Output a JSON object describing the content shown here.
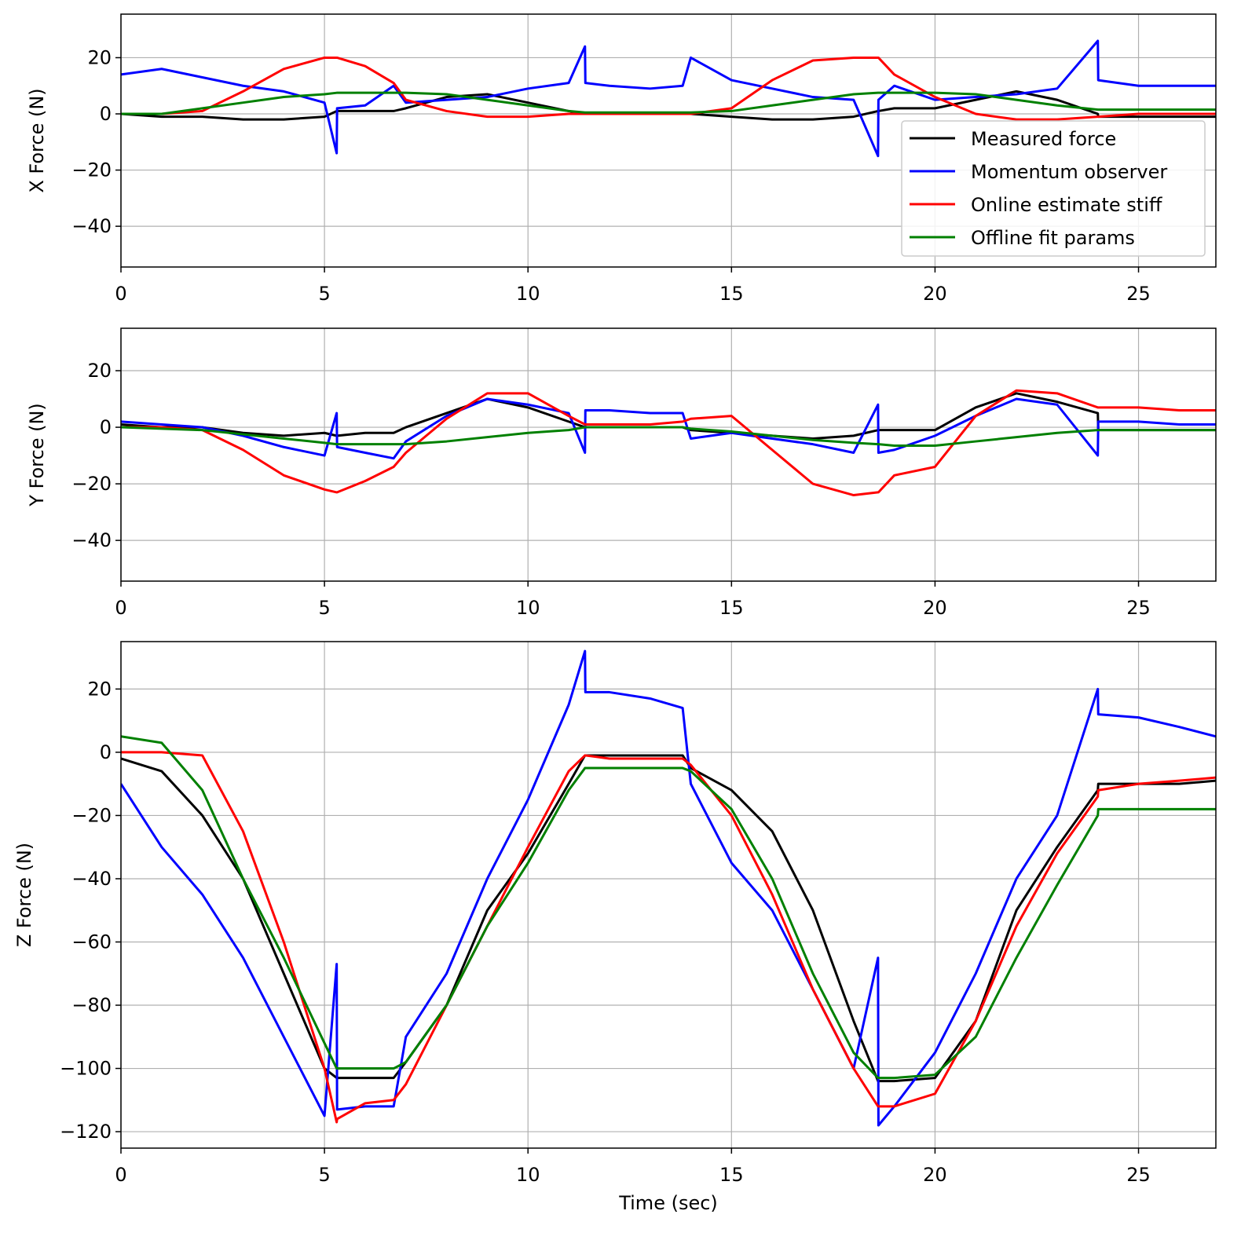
{
  "chart_data": [
    {
      "type": "line",
      "ylabel": "X Force (N)",
      "x": [
        0,
        1,
        2,
        3,
        4,
        5,
        5.3,
        5.31,
        6,
        6.7,
        7,
        8,
        9,
        10,
        11,
        11.4,
        11.41,
        12,
        13,
        13.8,
        14,
        15,
        16,
        17,
        18,
        18.6,
        18.61,
        19,
        20,
        21,
        22,
        23,
        24,
        24.01,
        25,
        26,
        26.9
      ],
      "xlim": [
        0,
        26.9
      ],
      "ylim": [
        -54.5,
        35.5
      ],
      "xticks": [
        0,
        5,
        10,
        15,
        20,
        25
      ],
      "yticks": [
        {
          "value": -40,
          "label": "−40"
        },
        {
          "value": -20,
          "label": "−20"
        },
        0,
        20
      ],
      "grid": true,
      "legend": "lower right",
      "series": [
        {
          "name": "Measured force",
          "color": "#000000",
          "values": [
            0,
            -1,
            -1,
            -2,
            -2,
            -1,
            1,
            1,
            1,
            1,
            2,
            6,
            7,
            4,
            1,
            0,
            0,
            0,
            0,
            0,
            0,
            -1,
            -2,
            -2,
            -1,
            1,
            1,
            2,
            2,
            5,
            8,
            5,
            0,
            -1,
            -1,
            -1,
            -1
          ]
        },
        {
          "name": "Momentum observer",
          "color": "#0000ff",
          "values": [
            14,
            16,
            13,
            10,
            8,
            4,
            -14,
            2,
            3,
            10,
            4,
            5,
            6,
            9,
            11,
            24,
            11,
            10,
            9,
            10,
            20,
            12,
            9,
            6,
            5,
            -15,
            5,
            10,
            5,
            6,
            7,
            9,
            26,
            12,
            10,
            10,
            10
          ]
        },
        {
          "name": "Online estimate stiff",
          "color": "#ff0000",
          "values": [
            0,
            0,
            1,
            8,
            16,
            20,
            20,
            20,
            17,
            11,
            5,
            1,
            -1,
            -1,
            0,
            0,
            0,
            0,
            0,
            0,
            0,
            2,
            12,
            19,
            20,
            20,
            20,
            14,
            6,
            0,
            -2,
            -2,
            -1,
            -1,
            0,
            0,
            0
          ]
        },
        {
          "name": "Offline fit params",
          "color": "#008000",
          "values": [
            0,
            0,
            2,
            4,
            6,
            7,
            7.5,
            7.5,
            7.5,
            7.5,
            7.5,
            7,
            5,
            3,
            1,
            0.5,
            0.5,
            0.5,
            0.5,
            0.5,
            0.5,
            1,
            3,
            5,
            7,
            7.5,
            7.5,
            7.5,
            7.5,
            7,
            5,
            3,
            1.5,
            1.5,
            1.5,
            1.5,
            1.5
          ]
        }
      ]
    },
    {
      "type": "line",
      "ylabel": "Y Force (N)",
      "x": [
        0,
        1,
        2,
        3,
        4,
        5,
        5.3,
        5.31,
        6,
        6.7,
        7,
        8,
        9,
        10,
        11,
        11.4,
        11.41,
        12,
        13,
        13.8,
        14,
        15,
        16,
        17,
        18,
        18.6,
        18.61,
        19,
        20,
        21,
        22,
        23,
        24,
        24.01,
        25,
        26,
        26.9
      ],
      "xlim": [
        0,
        26.9
      ],
      "ylim": [
        -54.4,
        35
      ],
      "xticks": [
        0,
        5,
        10,
        15,
        20,
        25
      ],
      "yticks": [
        {
          "value": -40,
          "label": "−40"
        },
        {
          "value": -20,
          "label": "−20"
        },
        0,
        20
      ],
      "grid": true,
      "series": [
        {
          "color": "#000000",
          "values": [
            1,
            0,
            0,
            -2,
            -3,
            -2,
            -3,
            -3,
            -2,
            -2,
            0,
            5,
            10,
            7,
            2,
            0,
            0,
            0,
            0,
            0,
            -1,
            -2,
            -3,
            -4,
            -3,
            -1,
            -1,
            -1,
            -1,
            7,
            12,
            9,
            5,
            -1,
            -1,
            -1,
            -1
          ]
        },
        {
          "color": "#0000ff",
          "values": [
            2,
            1,
            0,
            -3,
            -7,
            -10,
            5,
            -7,
            -9,
            -11,
            -5,
            4,
            10,
            8,
            5,
            -9,
            6,
            6,
            5,
            5,
            -4,
            -2,
            -4,
            -6,
            -9,
            8,
            -9,
            -8,
            -3,
            4,
            10,
            8,
            -10,
            2,
            2,
            1,
            1
          ]
        },
        {
          "color": "#ff0000",
          "values": [
            0,
            0,
            -1,
            -8,
            -17,
            -22,
            -23,
            -23,
            -19,
            -14,
            -9,
            3,
            12,
            12,
            4,
            1,
            1,
            1,
            1,
            2,
            3,
            4,
            -8,
            -20,
            -24,
            -23,
            -23,
            -17,
            -14,
            4,
            13,
            12,
            7,
            7,
            7,
            6,
            6
          ]
        },
        {
          "color": "#008000",
          "values": [
            0,
            -0.5,
            -1,
            -2.5,
            -4,
            -5.5,
            -6,
            -6,
            -6,
            -6,
            -6,
            -5,
            -3.5,
            -2,
            -1,
            0,
            0,
            0,
            0,
            0,
            -0.5,
            -1.5,
            -3,
            -4.5,
            -5.5,
            -6,
            -6,
            -6.5,
            -6.5,
            -5,
            -3.5,
            -2,
            -1,
            -1,
            -1,
            -1,
            -1
          ]
        }
      ]
    },
    {
      "type": "line",
      "ylabel": "Z Force (N)",
      "xlabel": "Time (sec)",
      "x": [
        0,
        1,
        2,
        3,
        4,
        5,
        5.3,
        5.31,
        6,
        6.7,
        7,
        8,
        9,
        10,
        11,
        11.4,
        11.41,
        12,
        13,
        13.8,
        14,
        15,
        16,
        17,
        18,
        18.6,
        18.61,
        19,
        20,
        21,
        22,
        23,
        24,
        24.01,
        25,
        26,
        26.9
      ],
      "xlim": [
        0,
        26.9
      ],
      "ylim": [
        -125.2,
        35
      ],
      "xticks": [
        0,
        5,
        10,
        15,
        20,
        25
      ],
      "yticks": [
        {
          "value": -120,
          "label": "−120"
        },
        {
          "value": -100,
          "label": "−100"
        },
        {
          "value": -80,
          "label": "−80"
        },
        {
          "value": -60,
          "label": "−60"
        },
        {
          "value": -40,
          "label": "−40"
        },
        {
          "value": -20,
          "label": "−20"
        },
        0,
        20
      ],
      "grid": true,
      "series": [
        {
          "color": "#000000",
          "values": [
            -2,
            -6,
            -20,
            -40,
            -70,
            -100,
            -103,
            -103,
            -103,
            -103,
            -98,
            -80,
            -50,
            -32,
            -10,
            -1,
            -1,
            -1,
            -1,
            -1,
            -5,
            -12,
            -25,
            -50,
            -85,
            -104,
            -104,
            -104,
            -103,
            -85,
            -50,
            -30,
            -12,
            -10,
            -10,
            -10,
            -9
          ]
        },
        {
          "color": "#0000ff",
          "values": [
            -10,
            -30,
            -45,
            -65,
            -90,
            -115,
            -67,
            -113,
            -112,
            -112,
            -90,
            -70,
            -40,
            -15,
            15,
            32,
            19,
            19,
            17,
            14,
            -10,
            -35,
            -50,
            -75,
            -100,
            -65,
            -118,
            -112,
            -95,
            -70,
            -40,
            -20,
            20,
            12,
            11,
            8,
            5
          ]
        },
        {
          "color": "#ff0000",
          "values": [
            0,
            0,
            -1,
            -25,
            -60,
            -100,
            -117,
            -116,
            -111,
            -110,
            -105,
            -80,
            -55,
            -30,
            -6,
            -1,
            -1,
            -2,
            -2,
            -2,
            -4,
            -20,
            -45,
            -75,
            -100,
            -112,
            -112,
            -112,
            -108,
            -85,
            -55,
            -32,
            -14,
            -12,
            -10,
            -9,
            -8
          ]
        },
        {
          "color": "#008000",
          "values": [
            5,
            3,
            -12,
            -40,
            -65,
            -92,
            -100,
            -100,
            -100,
            -100,
            -98,
            -80,
            -55,
            -35,
            -12,
            -5,
            -5,
            -5,
            -5,
            -5,
            -6,
            -18,
            -40,
            -70,
            -95,
            -103,
            -103,
            -103,
            -102,
            -90,
            -65,
            -42,
            -20,
            -18,
            -18,
            -18,
            -18
          ]
        }
      ]
    }
  ]
}
